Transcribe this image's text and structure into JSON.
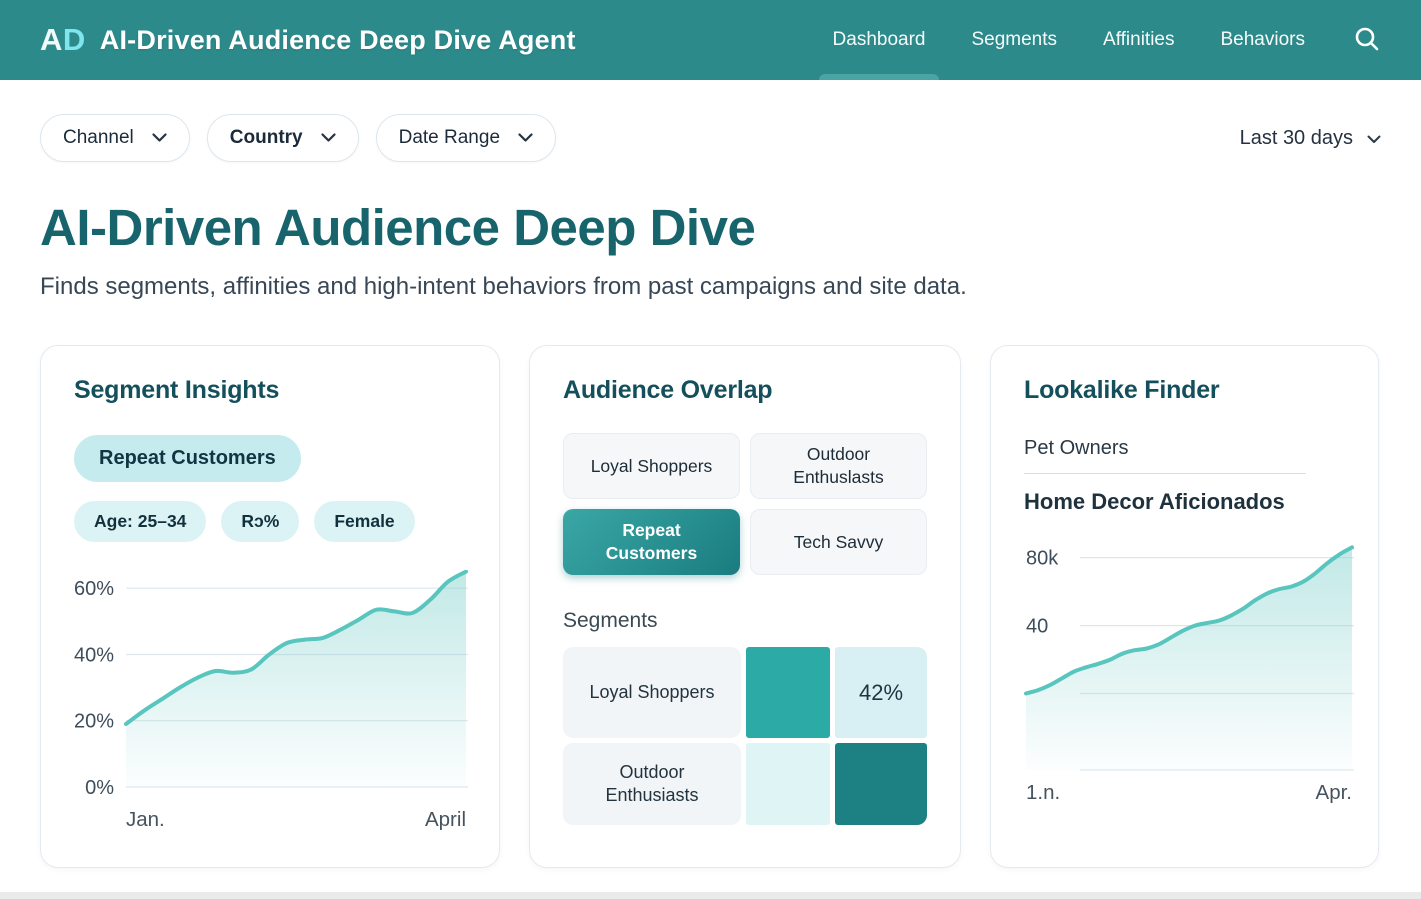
{
  "header": {
    "logo": {
      "letter_a": "A",
      "letter_d": "D"
    },
    "app_title": "AI-Driven Audience Deep Dive Agent",
    "nav": [
      {
        "label": "Dashboard",
        "active": true
      },
      {
        "label": "Segments",
        "active": false
      },
      {
        "label": "Affinities",
        "active": false
      },
      {
        "label": "Behaviors",
        "active": false
      }
    ]
  },
  "filters": {
    "dropdowns": [
      {
        "label": "Channel"
      },
      {
        "label": "Country"
      },
      {
        "label": "Date Range"
      }
    ],
    "date_selector": "Last 30 days"
  },
  "hero": {
    "title": "AI-Driven Audience Deep Dive",
    "subtitle": "Finds segments, affinities and high-intent behaviors from past campaigns and site data."
  },
  "cards": {
    "segment_insights": {
      "title": "Segment Insights",
      "primary_chip": "Repeat Customers",
      "tags": [
        "Age: 25–34",
        "Rɔ%",
        "Female"
      ]
    },
    "audience_overlap": {
      "title": "Audience Overlap",
      "chips": [
        {
          "label": "Loyal Shoppers",
          "selected": false
        },
        {
          "label": "Outdoor Enthuslasts",
          "selected": false
        },
        {
          "label": "Repeat Customers",
          "selected": true
        },
        {
          "label": "Tech Savvy",
          "selected": false
        }
      ],
      "segments_label": "Segments",
      "matrix": {
        "rows": [
          {
            "label": "Loyal Shoppers",
            "cells": [
              {
                "bg": "#2caaa6",
                "text": ""
              },
              {
                "bg": "#d8f0f3",
                "text": "42%"
              }
            ]
          },
          {
            "label": "Outdoor Enthusiasts",
            "cells": [
              {
                "bg": "#def4f5",
                "text": ""
              },
              {
                "bg": "#1d8184",
                "text": ""
              }
            ]
          }
        ]
      }
    },
    "lookalike_finder": {
      "title": "Lookalike Finder",
      "seed_audience": "Pet Owners",
      "lookalike_audience": "Home Decor Aficionados"
    }
  },
  "chart_data": [
    {
      "type": "area",
      "title": "Segment Insights trend",
      "xlabels": [
        "Jan.",
        "April"
      ],
      "values": [
        19,
        23,
        26.5,
        30,
        33,
        35,
        34.5,
        35.5,
        40,
        43.5,
        44.5,
        45,
        47.5,
        50.5,
        53.5,
        53,
        52.5,
        56.5,
        62,
        65
      ],
      "ylim": [
        0,
        67
      ],
      "yticks": [
        {
          "v": 60,
          "label": "60%"
        },
        {
          "v": 40,
          "label": "40%"
        },
        {
          "v": 20,
          "label": "20%"
        },
        {
          "v": 0,
          "label": "0%"
        }
      ],
      "line_color": "#58c5be",
      "fill_color": "#8fd6d2",
      "grid": true,
      "legend": "none"
    },
    {
      "type": "area",
      "title": "Lookalike audience growth",
      "xlabels": [
        "1.n.",
        "Apr."
      ],
      "values": [
        0,
        2,
        5,
        9,
        13,
        15.5,
        17.5,
        20,
        23.5,
        25.5,
        26.5,
        29,
        33,
        37,
        40,
        41.5,
        43,
        46,
        50,
        55,
        59,
        61.5,
        63,
        66,
        71,
        77,
        82,
        86
      ],
      "ylim": [
        -45,
        88
      ],
      "yticks": [
        {
          "v": 80,
          "label": "80k"
        },
        {
          "v": 40,
          "label": "40"
        },
        {
          "v": 0,
          "label": ""
        },
        {
          "v": -45,
          "label": ""
        }
      ],
      "line_color": "#58c5be",
      "fill_color": "#8fd6d2",
      "grid": true,
      "legend": "none"
    }
  ],
  "colors": {
    "header_bg": "#2d8a8b",
    "logo_d": "#7ee6ec",
    "accent_teal": "#2caaa6",
    "dark_teal": "#1d8184",
    "title_teal": "#17646c",
    "chip_bg": "#c6ebee"
  }
}
